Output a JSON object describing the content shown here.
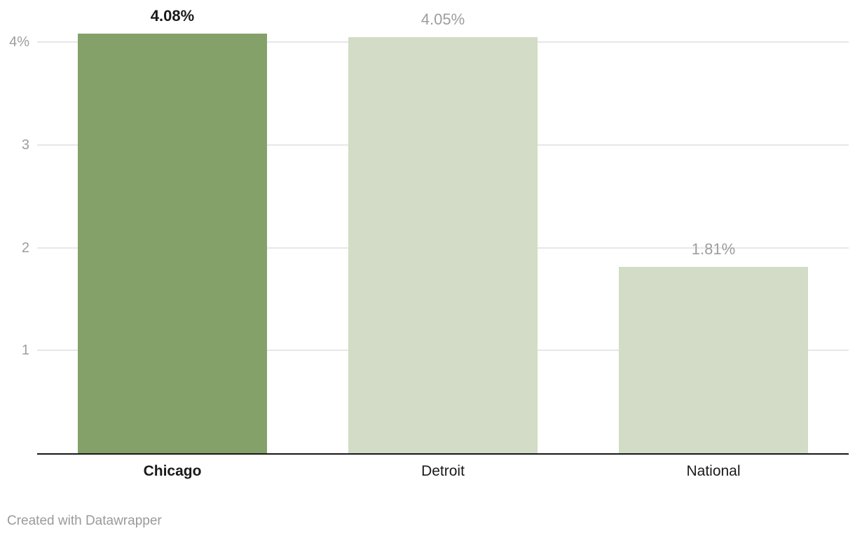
{
  "chart_data": {
    "type": "bar",
    "title": "",
    "xlabel": "",
    "ylabel": "",
    "categories": [
      "Chicago",
      "Detroit",
      "National"
    ],
    "values": [
      4.08,
      4.05,
      1.81
    ],
    "value_labels": [
      "4.08%",
      "4.05%",
      "1.81%"
    ],
    "emphasized": [
      true,
      false,
      false
    ],
    "ylim": [
      0,
      4.41
    ],
    "yticks": [
      {
        "value": 4,
        "label": "4%"
      },
      {
        "value": 3,
        "label": "3"
      },
      {
        "value": 2,
        "label": "2"
      },
      {
        "value": 1,
        "label": "1"
      }
    ],
    "grid": true,
    "legend": "none"
  },
  "colors": {
    "bar_highlight": "#84a169",
    "bar_muted": "#d2dcc6",
    "text_dark": "#1a1a1a",
    "text_gray": "#9d9d9d",
    "gridline": "#e7e7e7",
    "axis_line": "#181818",
    "credit_gray": "#9a9a9a"
  },
  "footer": {
    "credit": "Created with Datawrapper"
  }
}
